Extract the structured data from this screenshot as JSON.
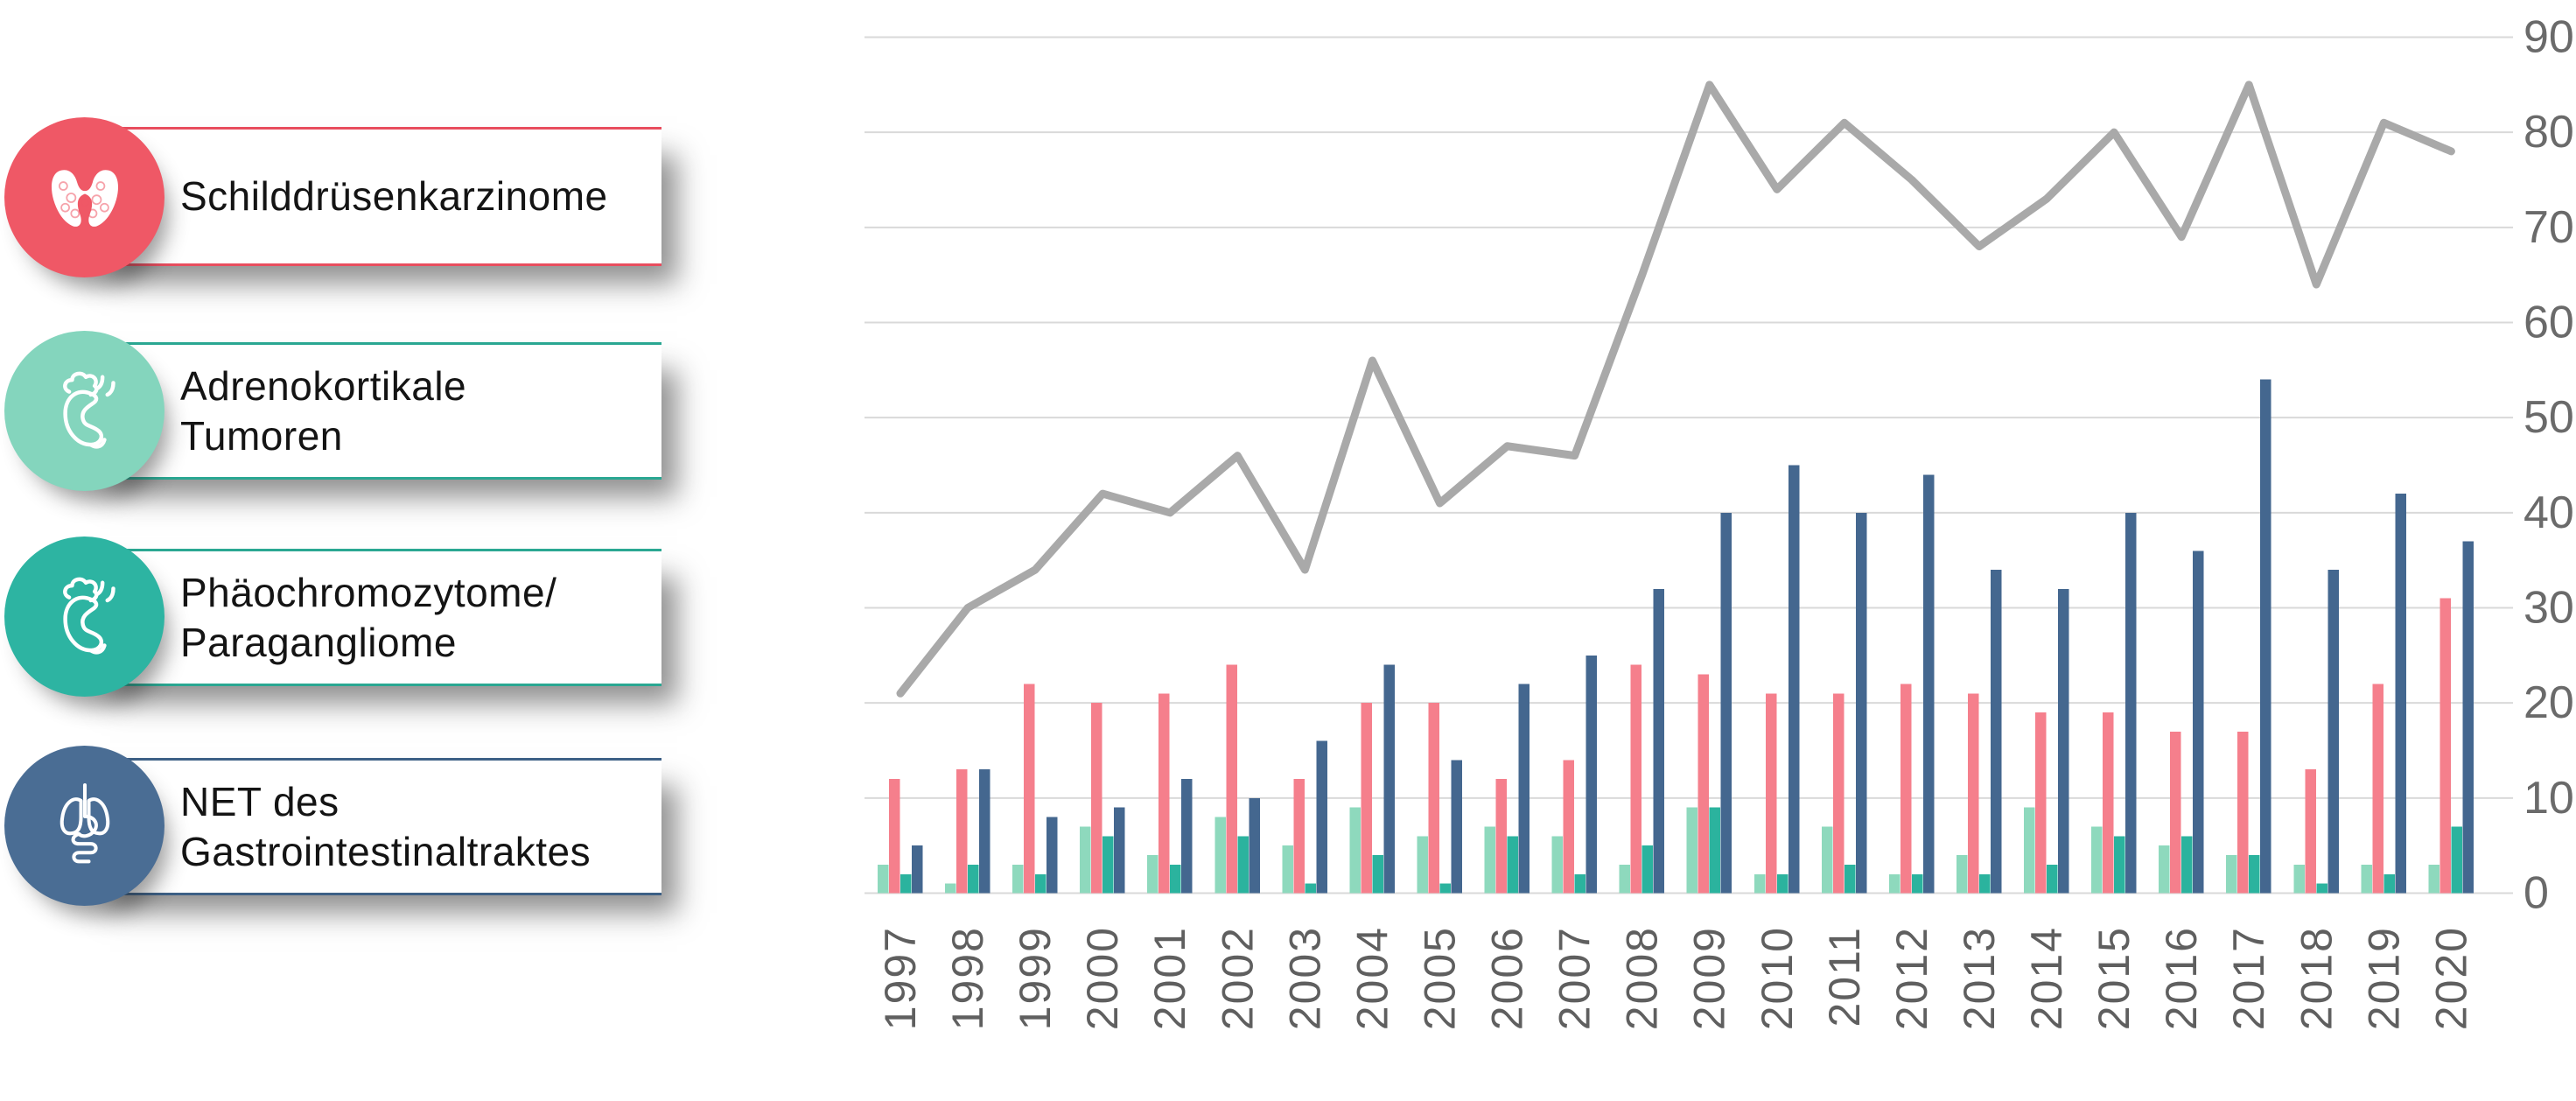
{
  "legend": {
    "items": [
      {
        "label": "Schilddrüsenkarzinome",
        "lines": [
          "Schilddrüsenkarzinome"
        ],
        "circle_color": "#ef5866",
        "rule_color": "#e84d5e",
        "icon": "thyroid-icon"
      },
      {
        "label": "Adrenokortikale Tumoren",
        "lines": [
          "Adrenokortikale",
          "Tumoren"
        ],
        "circle_color": "#84d5bd",
        "rule_color": "#2aa792",
        "icon": "adrenal-gland-icon"
      },
      {
        "label": "Phäochromozytome/Paragangliome",
        "lines": [
          "Phäochromozytome/",
          "Paragangliome"
        ],
        "circle_color": "#2db4a2",
        "rule_color": "#2aa792",
        "icon": "adrenal-gland-icon"
      },
      {
        "label": "NET des Gastrointestinaltraktes",
        "lines": [
          "NET des",
          "Gastrointestinaltraktes"
        ],
        "circle_color": "#4a6d94",
        "rule_color": "#3d6086",
        "icon": "lungs-gi-tract-icon"
      }
    ]
  },
  "chart_data": {
    "type": "bar",
    "title": "",
    "xlabel": "",
    "ylabel": "",
    "ylim": [
      0,
      90
    ],
    "yticks": [
      0,
      10,
      20,
      30,
      40,
      50,
      60,
      70,
      80,
      90
    ],
    "grid": true,
    "y_axis_side": "right",
    "legend_position": "left",
    "categories": [
      "1997",
      "1998",
      "1999",
      "2000",
      "2001",
      "2002",
      "2003",
      "2004",
      "2005",
      "2006",
      "2007",
      "2008",
      "2009",
      "2010",
      "2011",
      "2012",
      "2013",
      "2014",
      "2015",
      "2016",
      "2017",
      "2018",
      "2019",
      "2020"
    ],
    "series": [
      {
        "name": "Adrenokortikale Tumoren",
        "color": "#8ed9bd",
        "values": [
          3,
          1,
          3,
          7,
          4,
          8,
          5,
          9,
          6,
          7,
          6,
          3,
          9,
          2,
          7,
          2,
          4,
          9,
          7,
          5,
          4,
          3,
          3,
          3
        ]
      },
      {
        "name": "Schilddrüsenkarzinome",
        "color": "#f57f8c",
        "values": [
          12,
          13,
          22,
          20,
          21,
          24,
          12,
          20,
          20,
          12,
          14,
          24,
          23,
          21,
          21,
          22,
          21,
          19,
          19,
          17,
          17,
          13,
          22,
          31
        ]
      },
      {
        "name": "Phäochromozytome/Paragangliome",
        "color": "#2bb39e",
        "values": [
          2,
          3,
          2,
          6,
          3,
          6,
          1,
          4,
          1,
          6,
          2,
          5,
          9,
          2,
          3,
          2,
          2,
          3,
          6,
          6,
          4,
          1,
          2,
          7
        ]
      },
      {
        "name": "NET des Gastrointestinaltraktes",
        "color": "#44678f",
        "values": [
          5,
          13,
          8,
          9,
          12,
          10,
          16,
          24,
          14,
          22,
          25,
          32,
          40,
          45,
          40,
          44,
          34,
          32,
          40,
          36,
          54,
          34,
          42,
          37
        ]
      }
    ],
    "line": {
      "type": "line",
      "color": "#a9a9a9",
      "values": [
        21,
        30,
        34,
        42,
        40,
        46,
        34,
        56,
        41,
        47,
        46,
        65,
        85,
        74,
        81,
        75,
        68,
        73,
        80,
        69,
        85,
        64,
        81,
        78
      ]
    },
    "axis_text_color": "#6a6a6a",
    "gridline_color": "#d9d9d9"
  }
}
